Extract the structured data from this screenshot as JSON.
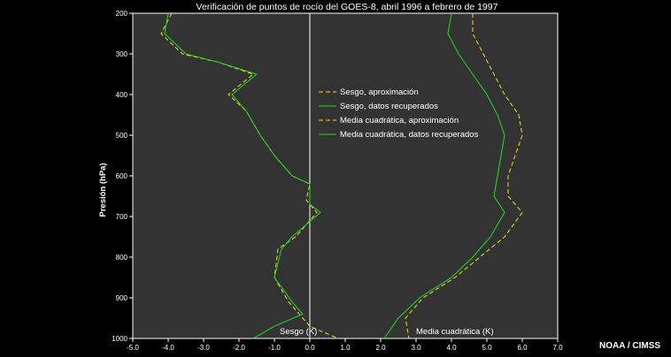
{
  "chart_data": {
    "type": "line",
    "title": "Verificación de puntos de rocío del GOES-8, abril 1996 a febrero de 1997",
    "ylabel": "Presión (hPa)",
    "xlim": [
      -5.0,
      7.0
    ],
    "ylim": [
      200,
      1000
    ],
    "y_inverted": true,
    "xticks": [
      -5.0,
      -4.0,
      -3.0,
      -2.0,
      -1.0,
      0.0,
      1.0,
      2.0,
      3.0,
      4.0,
      5.0,
      6.0,
      7.0
    ],
    "xtick_labels": [
      "-5.0",
      "-4.0",
      "-3.0",
      "-2.0",
      "-1.0",
      "0.0",
      "1.0",
      "2.0",
      "3.0",
      "4.0",
      "5.0",
      "6.0",
      "7.0"
    ],
    "yticks": [
      200,
      300,
      400,
      500,
      600,
      700,
      800,
      900,
      1000
    ],
    "ytick_labels": [
      "200",
      "300",
      "400",
      "500",
      "600",
      "700",
      "800",
      "900",
      "1000"
    ],
    "zero_line_x": 0.0,
    "inner_labels": {
      "bias": "Sesgo (K)",
      "rms": "Media cuadrática (K)"
    },
    "legend_position": "upper-middle",
    "series": [
      {
        "name": "Sesgo, aproximación",
        "color": "#f0e020",
        "dash": "dashed",
        "points": [
          [
            -3.9,
            200
          ],
          [
            -4.2,
            250
          ],
          [
            -3.6,
            300
          ],
          [
            -2.6,
            320
          ],
          [
            -1.6,
            350
          ],
          [
            -2.3,
            400
          ],
          [
            -1.8,
            440
          ],
          [
            -1.4,
            500
          ],
          [
            -1.0,
            550
          ],
          [
            -0.5,
            600
          ],
          [
            0.0,
            620
          ],
          [
            -0.1,
            660
          ],
          [
            0.2,
            690
          ],
          [
            -0.4,
            750
          ],
          [
            -0.9,
            780
          ],
          [
            -1.0,
            850
          ],
          [
            -0.6,
            910
          ],
          [
            -0.3,
            940
          ],
          [
            0.0,
            970
          ],
          [
            0.8,
            1000
          ]
        ]
      },
      {
        "name": "Sesgo, datos recuperados",
        "color": "#22dd22",
        "dash": "solid",
        "points": [
          [
            -4.0,
            200
          ],
          [
            -4.1,
            250
          ],
          [
            -3.5,
            300
          ],
          [
            -2.6,
            320
          ],
          [
            -1.5,
            350
          ],
          [
            -2.2,
            400
          ],
          [
            -1.8,
            440
          ],
          [
            -1.4,
            500
          ],
          [
            -1.0,
            550
          ],
          [
            -0.5,
            600
          ],
          [
            0.0,
            620
          ],
          [
            0.0,
            670
          ],
          [
            0.3,
            690
          ],
          [
            -0.5,
            750
          ],
          [
            -0.8,
            780
          ],
          [
            -1.0,
            850
          ],
          [
            -0.5,
            910
          ],
          [
            -0.2,
            940
          ],
          [
            -1.0,
            970
          ],
          [
            -1.6,
            1000
          ]
        ]
      },
      {
        "name": "Media cuadrática, aproximación",
        "color": "#f0e020",
        "dash": "dashed",
        "points": [
          [
            4.6,
            200
          ],
          [
            4.6,
            250
          ],
          [
            4.9,
            300
          ],
          [
            5.2,
            350
          ],
          [
            5.5,
            400
          ],
          [
            5.9,
            450
          ],
          [
            6.0,
            500
          ],
          [
            5.8,
            550
          ],
          [
            5.6,
            600
          ],
          [
            5.6,
            650
          ],
          [
            6.0,
            690
          ],
          [
            5.5,
            750
          ],
          [
            4.8,
            800
          ],
          [
            4.1,
            850
          ],
          [
            3.2,
            900
          ],
          [
            2.7,
            950
          ],
          [
            2.8,
            1000
          ]
        ]
      },
      {
        "name": "Media cuadrática, datos recuperados",
        "color": "#22dd22",
        "dash": "solid",
        "points": [
          [
            4.0,
            200
          ],
          [
            3.9,
            250
          ],
          [
            4.2,
            300
          ],
          [
            4.6,
            350
          ],
          [
            5.0,
            400
          ],
          [
            5.3,
            450
          ],
          [
            5.5,
            500
          ],
          [
            5.4,
            550
          ],
          [
            5.3,
            600
          ],
          [
            5.2,
            650
          ],
          [
            5.5,
            690
          ],
          [
            5.1,
            750
          ],
          [
            4.6,
            800
          ],
          [
            4.0,
            850
          ],
          [
            3.1,
            900
          ],
          [
            2.5,
            950
          ],
          [
            2.1,
            1000
          ]
        ]
      }
    ]
  },
  "credit": "NOAA / CIMSS"
}
